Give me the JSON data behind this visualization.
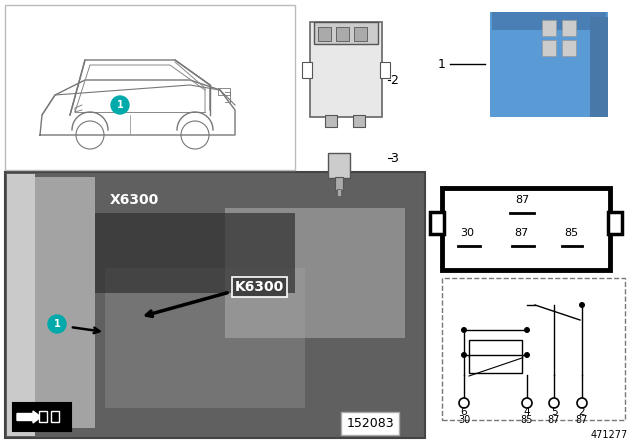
{
  "white": "#ffffff",
  "black": "#000000",
  "teal": "#00aaaa",
  "light_gray": "#d8d8d8",
  "med_gray": "#888888",
  "dark_gray": "#555555",
  "photo_dark": "#606060",
  "photo_mid": "#909090",
  "photo_light": "#b0b0b0",
  "blue_relay": "#5b9bd5",
  "blue_relay_dark": "#4a7fb5",
  "connector_fill": "#e8e8e8",
  "connector_dark": "#aaaaaa",
  "car_line": "#666666",
  "diagram_number": "152083",
  "ref_number": "471277",
  "figw": 6.4,
  "figh": 4.48,
  "dpi": 100
}
